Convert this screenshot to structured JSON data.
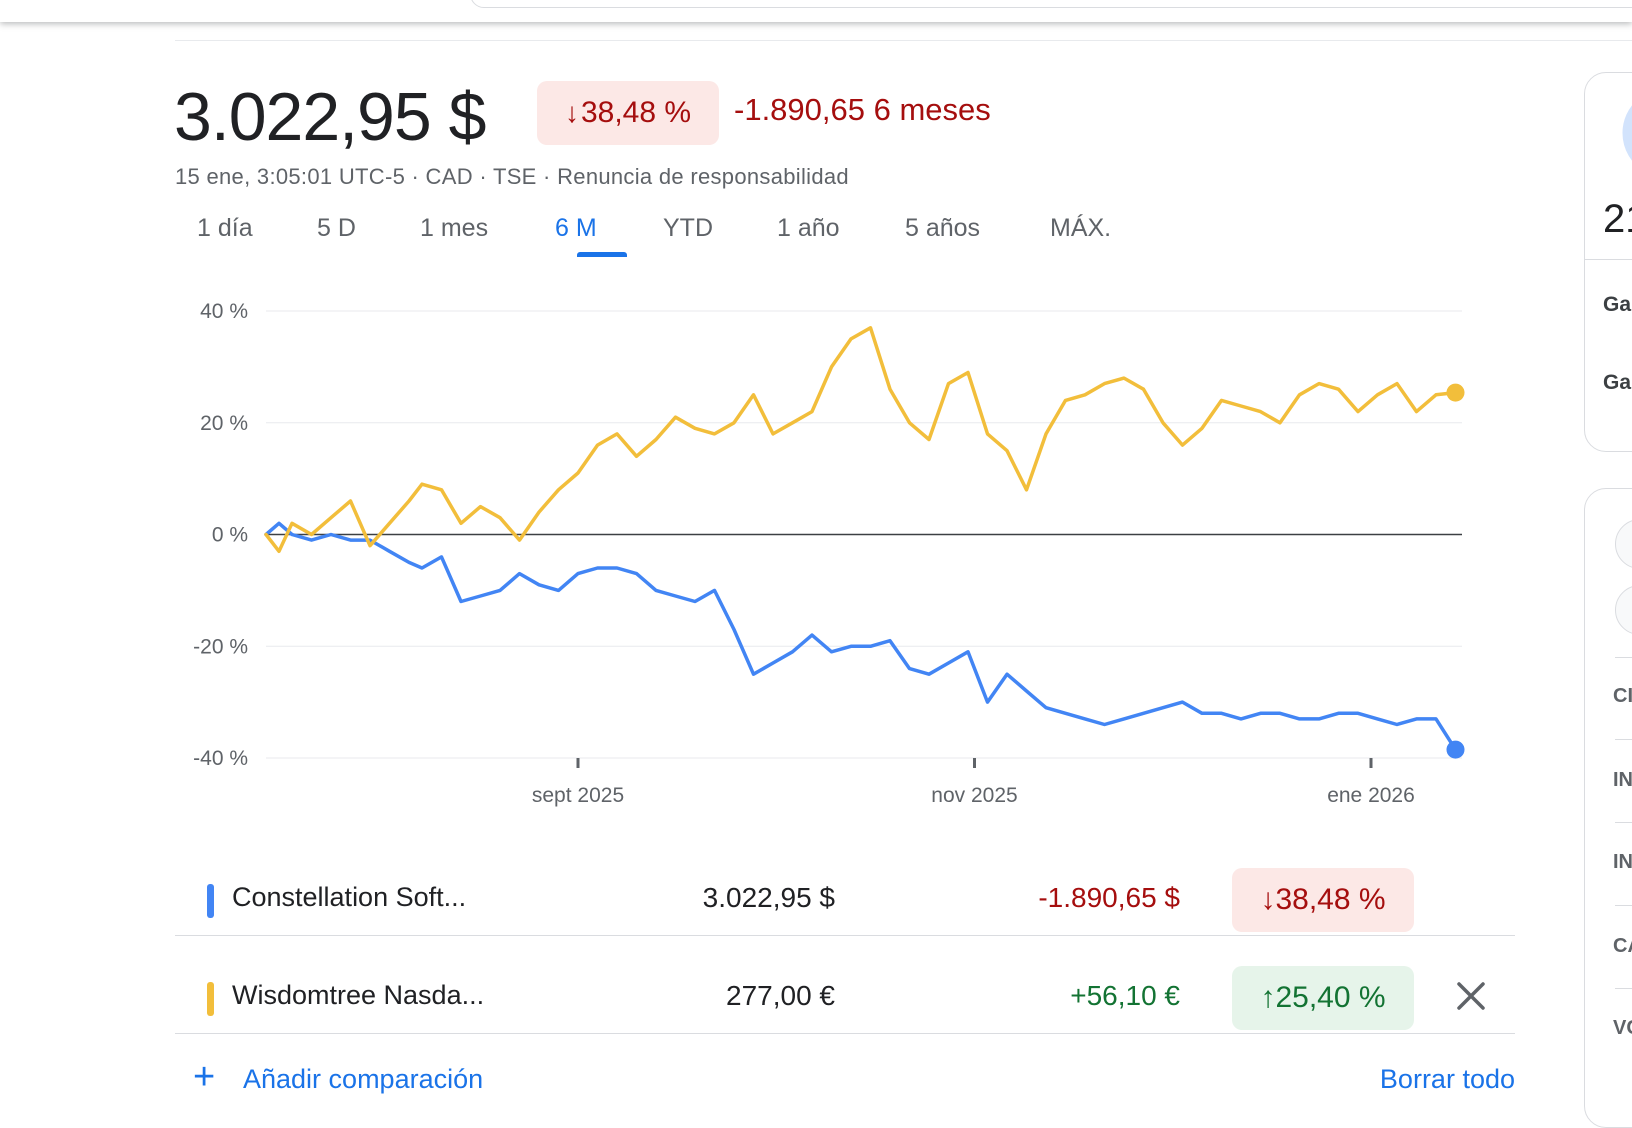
{
  "header": {
    "price": "3.022,95 $",
    "change_pct": "38,48 %",
    "change_arrow": "↓",
    "change_abs": "-1.890,65 6 meses",
    "meta": "15 ene, 3:05:01 UTC-5 · CAD · TSE · Renuncia de responsabilidad"
  },
  "tabs": [
    {
      "label": "1 día",
      "active": false
    },
    {
      "label": "5 D",
      "active": false
    },
    {
      "label": "1 mes",
      "active": false
    },
    {
      "label": "6 M",
      "active": true
    },
    {
      "label": "YTD",
      "active": false
    },
    {
      "label": "1 año",
      "active": false
    },
    {
      "label": "5 años",
      "active": false
    },
    {
      "label": "MÁX.",
      "active": false
    }
  ],
  "chart_data": {
    "type": "line",
    "title": "",
    "xlabel": "",
    "ylabel": "",
    "ylim": [
      -40,
      40
    ],
    "y_ticks": [
      "40 %",
      "20 %",
      "0 %",
      "-20 %",
      "-40 %"
    ],
    "y_tick_values": [
      40,
      20,
      0,
      -20,
      -40
    ],
    "x_tick_labels": [
      "sept 2025",
      "nov 2025",
      "ene 2026"
    ],
    "x_range": [
      "2025-07-15",
      "2026-01-15"
    ],
    "x_ticks": [
      "2025-09-01",
      "2025-11-01",
      "2026-01-01"
    ],
    "grid": true,
    "series": [
      {
        "name": "Constellation Soft...",
        "color": "#4285f4",
        "x": [
          "2025-07-15",
          "2025-07-17",
          "2025-07-19",
          "2025-07-22",
          "2025-07-25",
          "2025-07-28",
          "2025-07-31",
          "2025-08-03",
          "2025-08-06",
          "2025-08-08",
          "2025-08-11",
          "2025-08-14",
          "2025-08-17",
          "2025-08-20",
          "2025-08-23",
          "2025-08-26",
          "2025-08-29",
          "2025-09-01",
          "2025-09-04",
          "2025-09-07",
          "2025-09-10",
          "2025-09-13",
          "2025-09-16",
          "2025-09-19",
          "2025-09-22",
          "2025-09-25",
          "2025-09-28",
          "2025-10-01",
          "2025-10-04",
          "2025-10-07",
          "2025-10-10",
          "2025-10-13",
          "2025-10-16",
          "2025-10-19",
          "2025-10-22",
          "2025-10-25",
          "2025-10-28",
          "2025-10-31",
          "2025-11-03",
          "2025-11-06",
          "2025-11-09",
          "2025-11-12",
          "2025-11-15",
          "2025-11-18",
          "2025-11-21",
          "2025-11-24",
          "2025-11-27",
          "2025-11-30",
          "2025-12-03",
          "2025-12-06",
          "2025-12-09",
          "2025-12-12",
          "2025-12-15",
          "2025-12-18",
          "2025-12-21",
          "2025-12-24",
          "2025-12-27",
          "2025-12-30",
          "2026-01-02",
          "2026-01-05",
          "2026-01-08",
          "2026-01-11",
          "2026-01-14"
        ],
        "values": [
          0,
          2,
          0,
          -1,
          0,
          -1,
          -1,
          -3,
          -5,
          -6,
          -4,
          -12,
          -11,
          -10,
          -7,
          -9,
          -10,
          -7,
          -6,
          -6,
          -7,
          -10,
          -11,
          -12,
          -10,
          -17,
          -25,
          -23,
          -21,
          -18,
          -21,
          -20,
          -20,
          -19,
          -24,
          -25,
          -23,
          -21,
          -30,
          -25,
          -28,
          -31,
          -32,
          -33,
          -34,
          -33,
          -32,
          -31,
          -30,
          -32,
          -32,
          -33,
          -32,
          -32,
          -33,
          -33,
          -32,
          -32,
          -33,
          -34,
          -33,
          -33,
          -38.5
        ]
      },
      {
        "name": "Wisdomtree Nasda...",
        "color": "#f2be3b",
        "x": [
          "2025-07-15",
          "2025-07-17",
          "2025-07-19",
          "2025-07-22",
          "2025-07-25",
          "2025-07-28",
          "2025-07-31",
          "2025-08-03",
          "2025-08-06",
          "2025-08-08",
          "2025-08-11",
          "2025-08-14",
          "2025-08-17",
          "2025-08-20",
          "2025-08-23",
          "2025-08-26",
          "2025-08-29",
          "2025-09-01",
          "2025-09-04",
          "2025-09-07",
          "2025-09-10",
          "2025-09-13",
          "2025-09-16",
          "2025-09-19",
          "2025-09-22",
          "2025-09-25",
          "2025-09-28",
          "2025-10-01",
          "2025-10-04",
          "2025-10-07",
          "2025-10-10",
          "2025-10-13",
          "2025-10-16",
          "2025-10-19",
          "2025-10-22",
          "2025-10-25",
          "2025-10-28",
          "2025-10-31",
          "2025-11-03",
          "2025-11-06",
          "2025-11-09",
          "2025-11-12",
          "2025-11-15",
          "2025-11-18",
          "2025-11-21",
          "2025-11-24",
          "2025-11-27",
          "2025-11-30",
          "2025-12-03",
          "2025-12-06",
          "2025-12-09",
          "2025-12-12",
          "2025-12-15",
          "2025-12-18",
          "2025-12-21",
          "2025-12-24",
          "2025-12-27",
          "2025-12-30",
          "2026-01-02",
          "2026-01-05",
          "2026-01-08",
          "2026-01-11",
          "2026-01-14"
        ],
        "values": [
          0,
          -3,
          2,
          0,
          3,
          6,
          -2,
          2,
          6,
          9,
          8,
          2,
          5,
          3,
          -1,
          4,
          8,
          11,
          16,
          18,
          14,
          17,
          21,
          19,
          18,
          20,
          25,
          18,
          20,
          22,
          30,
          35,
          37,
          26,
          20,
          17,
          27,
          29,
          18,
          15,
          8,
          18,
          24,
          25,
          27,
          28,
          26,
          20,
          16,
          19,
          24,
          23,
          22,
          20,
          25,
          27,
          26,
          22,
          25,
          27,
          22,
          25,
          25.4
        ]
      }
    ]
  },
  "comparisons": [
    {
      "name": "Constellation Soft...",
      "color": "#4285f4",
      "value": "3.022,95 $",
      "abs_change": "-1.890,65 $",
      "pct_arrow": "↓",
      "pct": "38,48 %",
      "direction": "down"
    },
    {
      "name": "Wisdomtree Nasda...",
      "color": "#f2be3b",
      "value": "277,00 €",
      "abs_change": "+56,10 €",
      "pct_arrow": "↑",
      "pct": "25,40 %",
      "direction": "up"
    }
  ],
  "add_comparison": "Añadir comparación",
  "clear_all": "Borrar todo",
  "right_panel": {
    "big_text": "21",
    "labels": [
      "Ga",
      "Ga",
      "CI",
      "IN",
      "IN",
      "CA",
      "VC"
    ]
  },
  "colors": {
    "accent": "#1a73e8",
    "down_text": "#a50e0e",
    "down_bg": "#fce8e6",
    "up_text": "#137333",
    "up_bg": "#e6f4ea"
  }
}
